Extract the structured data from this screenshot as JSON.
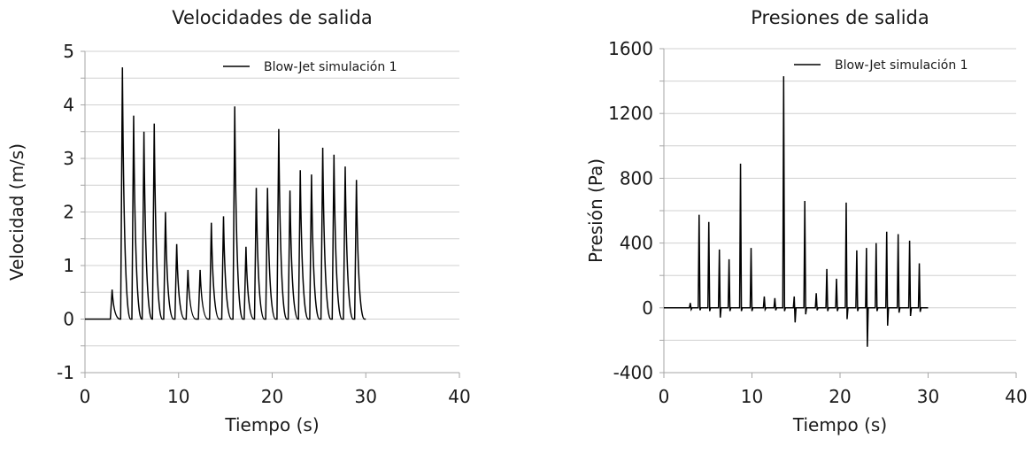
{
  "chart_data": [
    {
      "type": "line",
      "title": "Velocidades de salida",
      "xlabel": "Tiempo (s)",
      "ylabel": "Velocidad (m/s)",
      "xlim": [
        0,
        40
      ],
      "ylim": [
        -1,
        5
      ],
      "xticks": [
        0,
        10,
        20,
        30,
        40
      ],
      "yticks": [
        -1,
        0,
        1,
        2,
        3,
        4,
        5
      ],
      "grid": true,
      "legend_position": "top-right",
      "series": [
        {
          "name": "Blow-Jet simulación 1",
          "color": "#000000",
          "peaks": [
            {
              "t": 2.9,
              "v": 0.55
            },
            {
              "t": 4.0,
              "v": 4.7
            },
            {
              "t": 5.2,
              "v": 3.8
            },
            {
              "t": 6.3,
              "v": 3.5
            },
            {
              "t": 7.4,
              "v": 3.65
            },
            {
              "t": 8.6,
              "v": 2.0
            },
            {
              "t": 9.8,
              "v": 1.4
            },
            {
              "t": 11.0,
              "v": 0.92
            },
            {
              "t": 12.3,
              "v": 0.92
            },
            {
              "t": 13.5,
              "v": 1.8
            },
            {
              "t": 14.8,
              "v": 1.92
            },
            {
              "t": 16.0,
              "v": 3.97
            },
            {
              "t": 17.2,
              "v": 1.35
            },
            {
              "t": 18.3,
              "v": 2.45
            },
            {
              "t": 19.5,
              "v": 2.45
            },
            {
              "t": 20.7,
              "v": 3.55
            },
            {
              "t": 21.9,
              "v": 2.4
            },
            {
              "t": 23.0,
              "v": 2.78
            },
            {
              "t": 24.2,
              "v": 2.7
            },
            {
              "t": 25.4,
              "v": 3.2
            },
            {
              "t": 26.6,
              "v": 3.07
            },
            {
              "t": 27.8,
              "v": 2.85
            },
            {
              "t": 29.0,
              "v": 2.6
            }
          ],
          "end_t": 30.0
        }
      ]
    },
    {
      "type": "line",
      "title": "Presiones de salida",
      "xlabel": "Tiempo (s)",
      "ylabel": "Presión (Pa)",
      "xlim": [
        0,
        40
      ],
      "ylim": [
        -400,
        1600
      ],
      "xticks": [
        0,
        10,
        20,
        30,
        40
      ],
      "yticks": [
        -400,
        0,
        400,
        800,
        1200,
        1600
      ],
      "grid": true,
      "legend_position": "top-right",
      "series": [
        {
          "name": "Blow-Jet simulación 1",
          "color": "#000000",
          "spikes": [
            {
              "t": 3.0,
              "p": 30,
              "n": -10
            },
            {
              "t": 4.0,
              "p": 575,
              "n": -15
            },
            {
              "t": 5.1,
              "p": 530,
              "n": -20
            },
            {
              "t": 6.3,
              "p": 360,
              "n": -60
            },
            {
              "t": 7.4,
              "p": 300,
              "n": -20
            },
            {
              "t": 8.7,
              "p": 890,
              "n": -20
            },
            {
              "t": 9.9,
              "p": 370,
              "n": -20
            },
            {
              "t": 11.4,
              "p": 70,
              "n": -10
            },
            {
              "t": 12.6,
              "p": 60,
              "n": -15
            },
            {
              "t": 13.6,
              "p": 1430,
              "n": -20
            },
            {
              "t": 14.8,
              "p": 70,
              "n": -90
            },
            {
              "t": 16.0,
              "p": 660,
              "n": -40
            },
            {
              "t": 17.3,
              "p": 90,
              "n": -15
            },
            {
              "t": 18.5,
              "p": 240,
              "n": -20
            },
            {
              "t": 19.6,
              "p": 180,
              "n": -20
            },
            {
              "t": 20.7,
              "p": 650,
              "n": -70
            },
            {
              "t": 21.9,
              "p": 355,
              "n": -20
            },
            {
              "t": 23.0,
              "p": 370,
              "n": -240
            },
            {
              "t": 24.1,
              "p": 400,
              "n": -20
            },
            {
              "t": 25.3,
              "p": 470,
              "n": -110
            },
            {
              "t": 26.6,
              "p": 455,
              "n": -30
            },
            {
              "t": 27.9,
              "p": 415,
              "n": -50
            },
            {
              "t": 29.0,
              "p": 275,
              "n": -25
            }
          ],
          "end_t": 30.0
        }
      ]
    }
  ]
}
